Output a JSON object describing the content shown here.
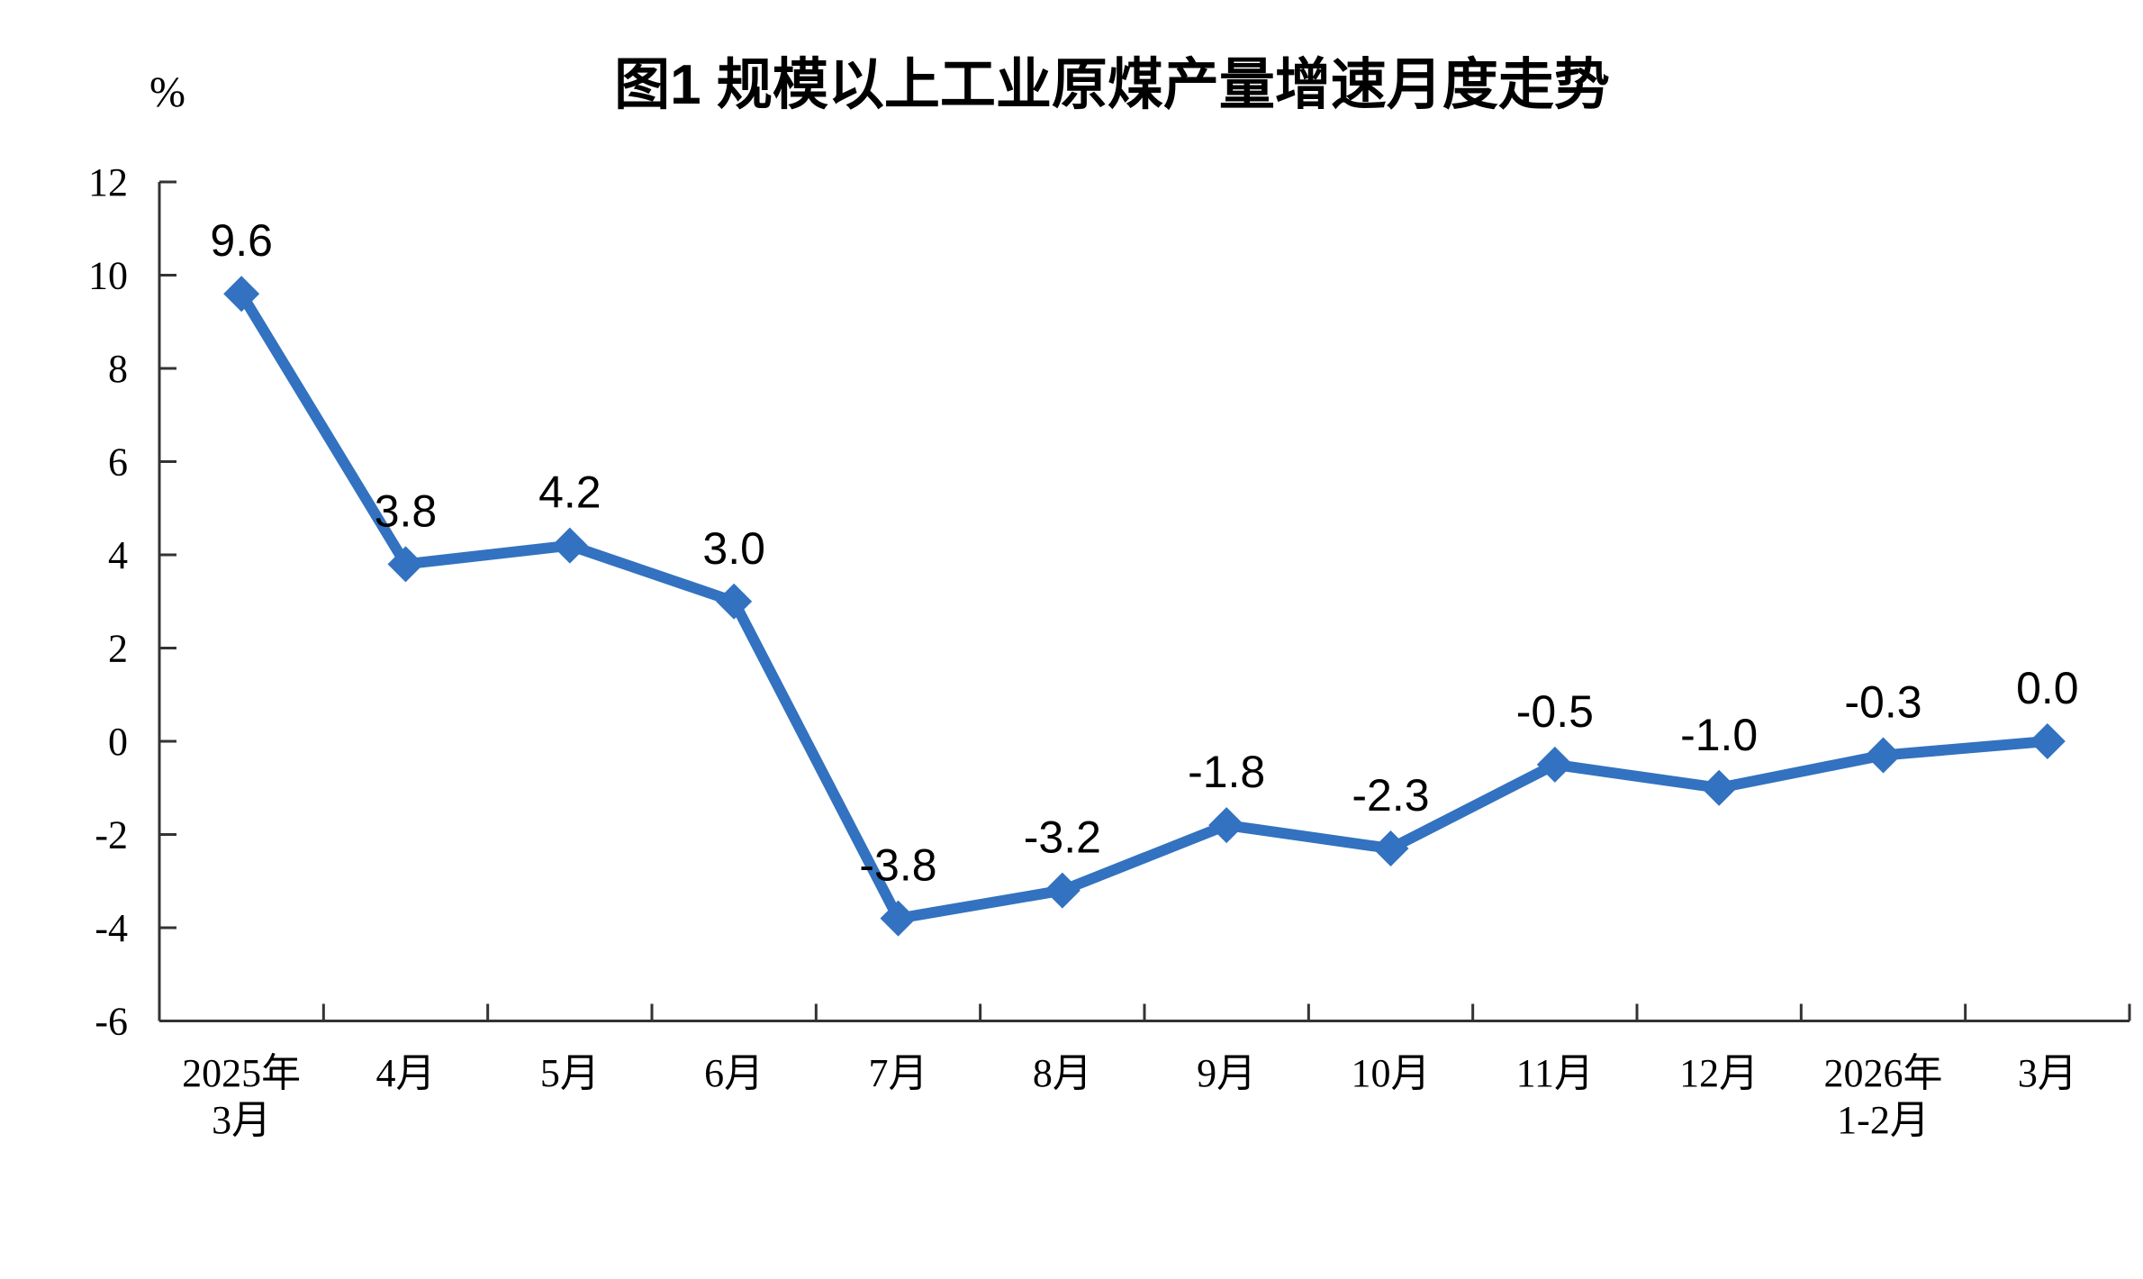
{
  "chart_data": {
    "type": "line",
    "title": "图1 规模以上工业原煤产量增速月度走势",
    "ylabel": "%",
    "xlabel": "",
    "categories": [
      [
        "2025年",
        "3月"
      ],
      [
        "4月"
      ],
      [
        "5月"
      ],
      [
        "6月"
      ],
      [
        "7月"
      ],
      [
        "8月"
      ],
      [
        "9月"
      ],
      [
        "10月"
      ],
      [
        "11月"
      ],
      [
        "12月"
      ],
      [
        "2026年",
        "1-2月"
      ],
      [
        "3月"
      ]
    ],
    "values": [
      9.6,
      3.8,
      4.2,
      3.0,
      -3.8,
      -3.2,
      -1.8,
      -2.3,
      -0.5,
      -1.0,
      -0.3,
      0.0
    ],
    "data_labels": [
      "9.6",
      "3.8",
      "4.2",
      "3.0",
      "-3.8",
      "-3.2",
      "-1.8",
      "-2.3",
      "-0.5",
      "-1.0",
      "-0.3",
      "0.0"
    ],
    "ylim": [
      -6,
      12
    ],
    "yticks": [
      12,
      10,
      8,
      6,
      4,
      2,
      0,
      -2,
      -4,
      -6
    ],
    "grid": false,
    "legend": "none",
    "marker": "diamond",
    "colors": {
      "line": "#3272C0",
      "axis": "#333333",
      "text": "#000000",
      "background": "#FFFFFF"
    }
  }
}
